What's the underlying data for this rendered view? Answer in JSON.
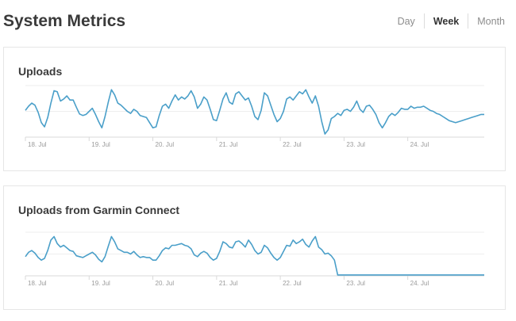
{
  "header": {
    "title": "System Metrics",
    "range_tabs": [
      {
        "label": "Day",
        "active": false
      },
      {
        "label": "Week",
        "active": true
      },
      {
        "label": "Month",
        "active": false
      }
    ]
  },
  "colors": {
    "line": "#4a9fc9",
    "grid": "#eeeeee",
    "axis": "#d9d9d9"
  },
  "chart_data": [
    {
      "type": "line",
      "title": "Uploads",
      "x_tick_labels": [
        "18. Jul",
        "19. Jul",
        "20. Jul",
        "21. Jul",
        "22. Jul",
        "23. Jul",
        "24. Jul"
      ],
      "xlim": [
        0,
        7.2
      ],
      "ylim": [
        0,
        1
      ],
      "grid": true,
      "series": [
        {
          "x": [
            0,
            0.05,
            0.1,
            0.15,
            0.2,
            0.25,
            0.3,
            0.35,
            0.4,
            0.45,
            0.5,
            0.55,
            0.6,
            0.65,
            0.7,
            0.75,
            0.8,
            0.85,
            0.9,
            0.95,
            1.0,
            1.05,
            1.1,
            1.15,
            1.2,
            1.25,
            1.3,
            1.35,
            1.4,
            1.45,
            1.5,
            1.55,
            1.6,
            1.65,
            1.7,
            1.75,
            1.8,
            1.85,
            1.9,
            1.95,
            2.0,
            2.05,
            2.1,
            2.15,
            2.2,
            2.25,
            2.3,
            2.35,
            2.4,
            2.45,
            2.5,
            2.55,
            2.6,
            2.65,
            2.7,
            2.75,
            2.8,
            2.85,
            2.9,
            2.95,
            3.0,
            3.05,
            3.1,
            3.15,
            3.2,
            3.25,
            3.3,
            3.35,
            3.4,
            3.45,
            3.5,
            3.55,
            3.6,
            3.65,
            3.7,
            3.75,
            3.8,
            3.85,
            3.9,
            3.95,
            4.0,
            4.05,
            4.1,
            4.15,
            4.2,
            4.25,
            4.3,
            4.35,
            4.4,
            4.45,
            4.5,
            4.55,
            4.6,
            4.65,
            4.7,
            4.75,
            4.8,
            4.85,
            4.9,
            4.95,
            5.0,
            5.05,
            5.1,
            5.15,
            5.2,
            5.25,
            5.3,
            5.35,
            5.4,
            5.45,
            5.5,
            5.55,
            5.6,
            5.65,
            5.7,
            5.75,
            5.8,
            5.85,
            5.9,
            5.95,
            6.0,
            6.05,
            6.1,
            6.15,
            6.2,
            6.25,
            6.3,
            6.35,
            6.4,
            6.45,
            6.5,
            6.55,
            6.6,
            6.65,
            6.7,
            6.75,
            6.8,
            6.85,
            6.9,
            6.95,
            7.0,
            7.05,
            7.1,
            7.15,
            7.2
          ],
          "y": [
            0.52,
            0.6,
            0.66,
            0.62,
            0.48,
            0.28,
            0.2,
            0.38,
            0.66,
            0.9,
            0.88,
            0.7,
            0.74,
            0.8,
            0.72,
            0.72,
            0.58,
            0.45,
            0.42,
            0.44,
            0.5,
            0.56,
            0.44,
            0.3,
            0.18,
            0.4,
            0.68,
            0.92,
            0.82,
            0.66,
            0.62,
            0.56,
            0.5,
            0.46,
            0.54,
            0.5,
            0.42,
            0.4,
            0.38,
            0.28,
            0.18,
            0.2,
            0.42,
            0.6,
            0.64,
            0.56,
            0.7,
            0.82,
            0.72,
            0.78,
            0.74,
            0.8,
            0.9,
            0.78,
            0.56,
            0.64,
            0.78,
            0.72,
            0.54,
            0.34,
            0.32,
            0.52,
            0.74,
            0.86,
            0.68,
            0.64,
            0.84,
            0.88,
            0.8,
            0.72,
            0.76,
            0.6,
            0.4,
            0.34,
            0.52,
            0.86,
            0.8,
            0.62,
            0.44,
            0.3,
            0.36,
            0.5,
            0.74,
            0.78,
            0.72,
            0.8,
            0.88,
            0.84,
            0.92,
            0.78,
            0.66,
            0.8,
            0.6,
            0.3,
            0.06,
            0.14,
            0.36,
            0.4,
            0.46,
            0.42,
            0.52,
            0.54,
            0.5,
            0.58,
            0.7,
            0.54,
            0.48,
            0.6,
            0.62,
            0.54,
            0.44,
            0.28,
            0.18,
            0.28,
            0.4,
            0.46,
            0.42,
            0.48,
            0.56,
            0.54,
            0.54,
            0.6,
            0.56,
            0.58,
            0.58,
            0.6,
            0.56,
            0.52,
            0.5,
            0.46,
            0.44,
            0.4,
            0.36,
            0.32,
            0.3,
            0.28,
            0.3,
            0.32,
            0.34,
            0.36,
            0.38,
            0.4,
            0.42,
            0.44,
            0.44
          ]
        }
      ]
    },
    {
      "type": "line",
      "title": "Uploads from Garmin Connect",
      "x_tick_labels": [
        "18. Jul",
        "19. Jul",
        "20. Jul",
        "21. Jul",
        "22. Jul",
        "23. Jul",
        "24. Jul"
      ],
      "xlim": [
        0,
        7.2
      ],
      "ylim": [
        0,
        1
      ],
      "grid": true,
      "series": [
        {
          "x": [
            0,
            0.05,
            0.1,
            0.15,
            0.2,
            0.25,
            0.3,
            0.35,
            0.4,
            0.45,
            0.5,
            0.55,
            0.6,
            0.65,
            0.7,
            0.75,
            0.8,
            0.85,
            0.9,
            0.95,
            1.0,
            1.05,
            1.1,
            1.15,
            1.2,
            1.25,
            1.3,
            1.35,
            1.4,
            1.45,
            1.5,
            1.55,
            1.6,
            1.65,
            1.7,
            1.75,
            1.8,
            1.85,
            1.9,
            1.95,
            2.0,
            2.05,
            2.1,
            2.15,
            2.2,
            2.25,
            2.3,
            2.35,
            2.4,
            2.45,
            2.5,
            2.55,
            2.6,
            2.65,
            2.7,
            2.75,
            2.8,
            2.85,
            2.9,
            2.95,
            3.0,
            3.05,
            3.1,
            3.15,
            3.2,
            3.25,
            3.3,
            3.35,
            3.4,
            3.45,
            3.5,
            3.55,
            3.6,
            3.65,
            3.7,
            3.75,
            3.8,
            3.85,
            3.9,
            3.95,
            4.0,
            4.05,
            4.1,
            4.15,
            4.2,
            4.25,
            4.3,
            4.35,
            4.4,
            4.45,
            4.5,
            4.55,
            4.6,
            4.65,
            4.7,
            4.75,
            4.8,
            4.85,
            4.9,
            4.95,
            5.0,
            5.05,
            5.1,
            5.15,
            5.2,
            5.25,
            7.2
          ],
          "y": [
            0.44,
            0.54,
            0.58,
            0.52,
            0.42,
            0.36,
            0.4,
            0.58,
            0.82,
            0.9,
            0.74,
            0.66,
            0.7,
            0.64,
            0.58,
            0.56,
            0.46,
            0.44,
            0.42,
            0.46,
            0.5,
            0.54,
            0.48,
            0.38,
            0.32,
            0.44,
            0.68,
            0.9,
            0.78,
            0.62,
            0.58,
            0.54,
            0.54,
            0.5,
            0.56,
            0.48,
            0.42,
            0.44,
            0.42,
            0.42,
            0.36,
            0.36,
            0.46,
            0.58,
            0.64,
            0.62,
            0.7,
            0.7,
            0.72,
            0.74,
            0.7,
            0.68,
            0.62,
            0.48,
            0.44,
            0.52,
            0.56,
            0.52,
            0.42,
            0.36,
            0.4,
            0.56,
            0.78,
            0.74,
            0.66,
            0.64,
            0.78,
            0.8,
            0.74,
            0.66,
            0.82,
            0.72,
            0.58,
            0.5,
            0.54,
            0.7,
            0.64,
            0.52,
            0.42,
            0.36,
            0.42,
            0.56,
            0.7,
            0.68,
            0.82,
            0.74,
            0.78,
            0.84,
            0.72,
            0.66,
            0.8,
            0.9,
            0.66,
            0.6,
            0.5,
            0.52,
            0.46,
            0.36,
            0.02,
            0.02,
            0.02,
            0.02,
            0.02,
            0.02,
            0.02,
            0.02,
            0.02
          ]
        }
      ]
    }
  ]
}
